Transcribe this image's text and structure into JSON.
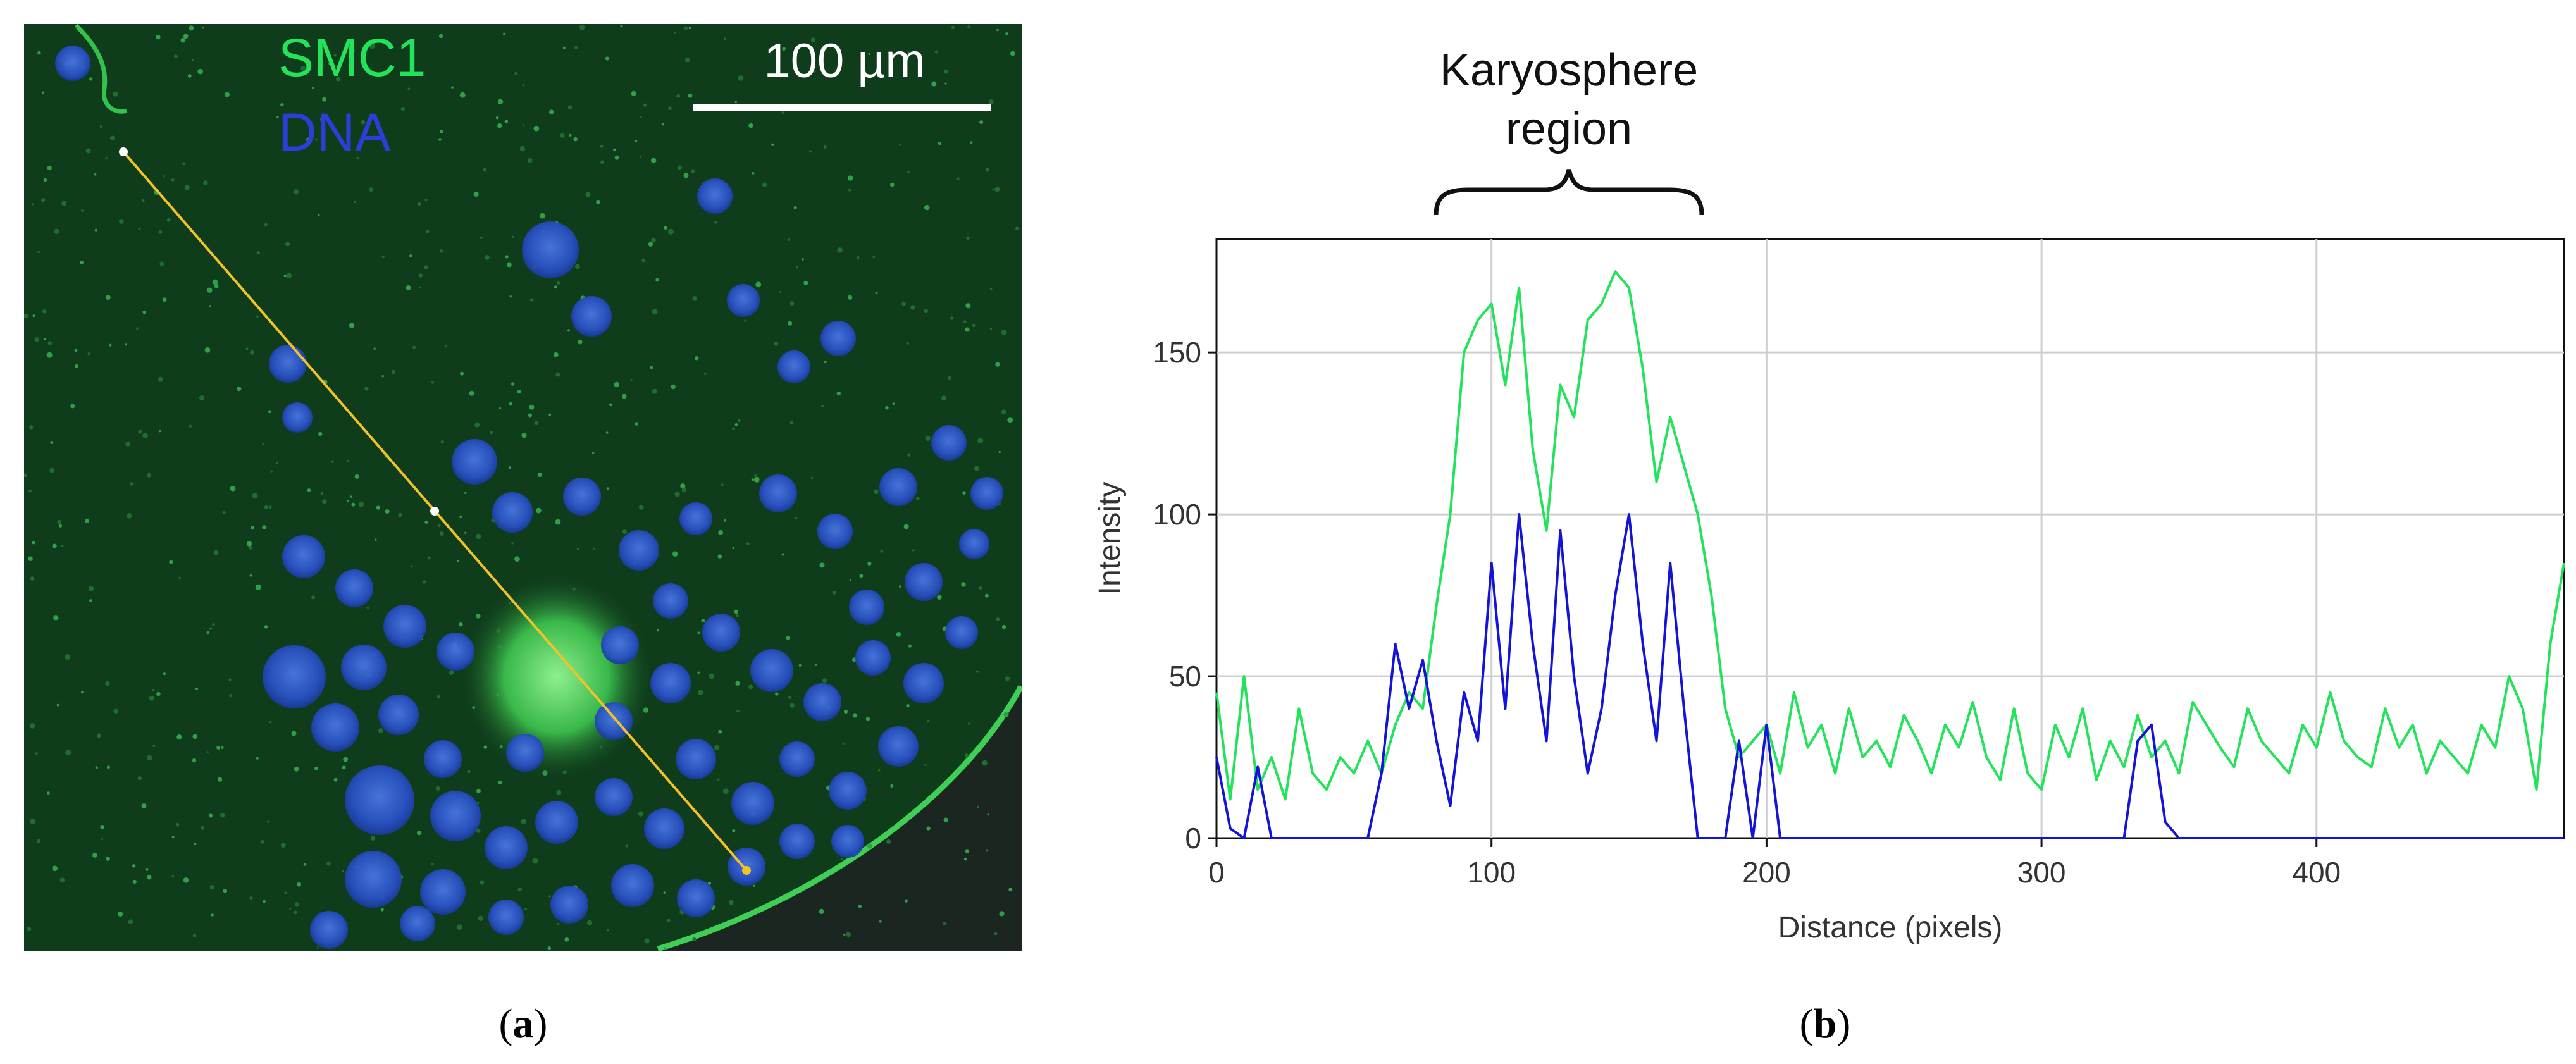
{
  "panel_a": {
    "stain_labels": [
      {
        "text": "SMC1",
        "color": "#22e35a"
      },
      {
        "text": "DNA",
        "color": "#2b3fd8"
      }
    ],
    "scale_bar": "100 µm",
    "caption_open": "(",
    "caption_letter": "a",
    "caption_close": ")"
  },
  "panel_b": {
    "bracket_label_line1": "Karyosphere",
    "bracket_label_line2": "region",
    "caption_open": "(",
    "caption_letter": "b",
    "caption_close": ")"
  },
  "colors": {
    "smc1": "#22e35a",
    "dna": "#1414d8",
    "line_profile": "#f2c22a",
    "background_tissue": "#0f3d1c"
  },
  "chart_data": {
    "type": "line",
    "xlabel": "Distance (pixels)",
    "ylabel": "Intensity",
    "xlim": [
      0,
      490
    ],
    "ylim": [
      0,
      185
    ],
    "xticks": [
      0,
      100,
      200,
      300,
      400
    ],
    "yticks": [
      0,
      50,
      100,
      150
    ],
    "grid": true,
    "series": [
      {
        "color": "#22e35a",
        "x": [
          0,
          5,
          10,
          15,
          20,
          25,
          30,
          35,
          40,
          45,
          50,
          55,
          60,
          65,
          70,
          75,
          80,
          85,
          90,
          95,
          100,
          105,
          110,
          115,
          120,
          125,
          130,
          135,
          140,
          145,
          150,
          155,
          160,
          165,
          170,
          175,
          180,
          185,
          190,
          195,
          200,
          205,
          210,
          215,
          220,
          225,
          230,
          235,
          240,
          245,
          250,
          255,
          260,
          265,
          270,
          275,
          280,
          285,
          290,
          295,
          300,
          305,
          310,
          315,
          320,
          325,
          330,
          335,
          340,
          345,
          350,
          355,
          360,
          365,
          370,
          375,
          380,
          385,
          390,
          395,
          400,
          405,
          410,
          415,
          420,
          425,
          430,
          435,
          440,
          445,
          450,
          455,
          460,
          465,
          470,
          475,
          480,
          485,
          490
        ],
        "values": [
          45,
          12,
          50,
          15,
          25,
          12,
          40,
          20,
          15,
          25,
          20,
          30,
          20,
          35,
          45,
          40,
          72,
          100,
          150,
          160,
          165,
          140,
          170,
          120,
          95,
          140,
          130,
          160,
          165,
          175,
          170,
          145,
          110,
          130,
          115,
          100,
          75,
          40,
          25,
          30,
          35,
          20,
          45,
          28,
          35,
          20,
          40,
          25,
          30,
          22,
          38,
          30,
          20,
          35,
          28,
          42,
          25,
          18,
          40,
          20,
          15,
          35,
          25,
          40,
          18,
          30,
          22,
          38,
          25,
          30,
          20,
          42,
          35,
          28,
          22,
          40,
          30,
          25,
          20,
          35,
          28,
          45,
          30,
          25,
          22,
          40,
          28,
          35,
          20,
          30,
          25,
          20,
          35,
          28,
          50,
          40,
          15,
          60,
          85
        ]
      },
      {
        "color": "#1414d8",
        "x": [
          0,
          5,
          10,
          15,
          20,
          25,
          30,
          35,
          40,
          45,
          50,
          55,
          60,
          65,
          70,
          75,
          80,
          85,
          90,
          95,
          100,
          105,
          110,
          115,
          120,
          125,
          130,
          135,
          140,
          145,
          150,
          155,
          160,
          165,
          170,
          175,
          180,
          185,
          190,
          195,
          200,
          205,
          210,
          215,
          220,
          225,
          230,
          235,
          240,
          245,
          250,
          255,
          260,
          265,
          270,
          275,
          280,
          285,
          290,
          295,
          300,
          305,
          310,
          315,
          320,
          325,
          330,
          335,
          340,
          345,
          350,
          355,
          360,
          365,
          370,
          375,
          380,
          385,
          390,
          395,
          400,
          405,
          410,
          415,
          420,
          425,
          430,
          435,
          440,
          445,
          450,
          455,
          460,
          465,
          470,
          475,
          480,
          485,
          490
        ],
        "values": [
          25,
          3,
          0,
          22,
          0,
          0,
          0,
          0,
          0,
          0,
          0,
          0,
          20,
          60,
          40,
          55,
          30,
          10,
          45,
          30,
          85,
          40,
          100,
          60,
          30,
          95,
          50,
          20,
          40,
          75,
          100,
          60,
          30,
          85,
          40,
          0,
          0,
          0,
          30,
          0,
          35,
          0,
          0,
          0,
          0,
          0,
          0,
          0,
          0,
          0,
          0,
          0,
          0,
          0,
          0,
          0,
          0,
          0,
          0,
          0,
          0,
          0,
          0,
          0,
          0,
          0,
          0,
          30,
          35,
          5,
          0,
          0,
          0,
          0,
          0,
          0,
          0,
          0,
          0,
          0,
          0,
          0,
          0,
          0,
          0,
          0,
          0,
          0,
          0,
          0,
          0,
          0,
          0,
          0,
          0,
          0,
          0,
          0,
          0
        ]
      }
    ]
  }
}
